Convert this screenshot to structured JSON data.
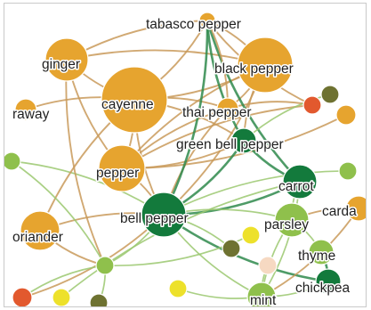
{
  "graph": {
    "nodes": [
      {
        "id": "tabasco-pepper",
        "label": "tabasco pepper",
        "color": "#e6a42f"
      },
      {
        "id": "ginger",
        "label": "ginger",
        "color": "#e6a42f"
      },
      {
        "id": "black-pepper",
        "label": "black pepper",
        "color": "#e6a42f"
      },
      {
        "id": "caraway",
        "label": "raway",
        "color": "#e6a42f"
      },
      {
        "id": "cayenne",
        "label": "cayenne",
        "color": "#e6a42f"
      },
      {
        "id": "thai-pepper",
        "label": "thai pepper",
        "color": "#e6a42f"
      },
      {
        "id": "green-bell-pepper",
        "label": "green bell pepper",
        "color": "#137a3c"
      },
      {
        "id": "pepper",
        "label": "pepper",
        "color": "#e6a42f"
      },
      {
        "id": "carrot",
        "label": "carrot",
        "color": "#137a3c"
      },
      {
        "id": "bell-pepper",
        "label": "bell pepper",
        "color": "#137a3c"
      },
      {
        "id": "parsley",
        "label": "parsley",
        "color": "#8fc04c"
      },
      {
        "id": "cardamom",
        "label": "carda",
        "color": "#e6a42f"
      },
      {
        "id": "coriander",
        "label": "oriander",
        "color": "#e6a42f"
      },
      {
        "id": "thyme",
        "label": "thyme",
        "color": "#8fc04c"
      },
      {
        "id": "chickpea",
        "label": "chickpea",
        "color": "#137a3c"
      },
      {
        "id": "mint",
        "label": "mint",
        "color": "#8fc04c"
      },
      {
        "id": "unlabeled-red-1",
        "label": "",
        "color": "#e2592e"
      },
      {
        "id": "unlabeled-olive-1",
        "label": "",
        "color": "#6e7231"
      },
      {
        "id": "unlabeled-orange-1",
        "label": "",
        "color": "#e6a42f"
      },
      {
        "id": "unlabeled-lightgreen-1",
        "label": "",
        "color": "#8fc04c"
      },
      {
        "id": "unlabeled-green-left",
        "label": "",
        "color": "#8fc04c"
      },
      {
        "id": "unlabeled-olive-2",
        "label": "",
        "color": "#6e7231"
      },
      {
        "id": "unlabeled-yellow-1",
        "label": "",
        "color": "#ede12b"
      },
      {
        "id": "unlabeled-peach",
        "label": "",
        "color": "#f6d9c2"
      },
      {
        "id": "unlabeled-lightgreen-2",
        "label": "",
        "color": "#8fc04c"
      },
      {
        "id": "unlabeled-red-2",
        "label": "",
        "color": "#e2592e"
      },
      {
        "id": "unlabeled-yellow-2",
        "label": "",
        "color": "#ede12b"
      },
      {
        "id": "unlabeled-olive-3",
        "label": "",
        "color": "#6e7231"
      },
      {
        "id": "unlabeled-yellow-3",
        "label": "",
        "color": "#ede12b"
      }
    ],
    "edges": [
      {
        "source": "ginger",
        "target": "cayenne",
        "color": "#c99a5b"
      },
      {
        "source": "ginger",
        "target": "black-pepper",
        "color": "#c99a5b"
      },
      {
        "source": "ginger",
        "target": "pepper",
        "color": "#c99a5b"
      },
      {
        "source": "ginger",
        "target": "tabasco-pepper",
        "color": "#c99a5b"
      },
      {
        "source": "cayenne",
        "target": "black-pepper",
        "color": "#c99a5b"
      },
      {
        "source": "cayenne",
        "target": "pepper",
        "color": "#c99a5b"
      },
      {
        "source": "cayenne",
        "target": "bell-pepper",
        "color": "#c99a5b"
      },
      {
        "source": "cayenne",
        "target": "thai-pepper",
        "color": "#c99a5b"
      },
      {
        "source": "cayenne",
        "target": "tabasco-pepper",
        "color": "#c99a5b"
      },
      {
        "source": "cayenne",
        "target": "green-bell-pepper",
        "color": "#c99a5b"
      },
      {
        "source": "black-pepper",
        "target": "pepper",
        "color": "#c99a5b"
      },
      {
        "source": "black-pepper",
        "target": "bell-pepper",
        "color": "#c99a5b"
      },
      {
        "source": "black-pepper",
        "target": "tabasco-pepper",
        "color": "#c99a5b"
      },
      {
        "source": "black-pepper",
        "target": "thai-pepper",
        "color": "#c99a5b"
      },
      {
        "source": "black-pepper",
        "target": "green-bell-pepper",
        "color": "#c99a5b"
      },
      {
        "source": "pepper",
        "target": "bell-pepper",
        "color": "#c99a5b"
      },
      {
        "source": "pepper",
        "target": "green-bell-pepper",
        "color": "#c99a5b"
      },
      {
        "source": "pepper",
        "target": "thai-pepper",
        "color": "#c99a5b"
      },
      {
        "source": "pepper",
        "target": "unlabeled-orange-1",
        "color": "#c99a5b"
      },
      {
        "source": "pepper",
        "target": "unlabeled-red-1",
        "color": "#c99a5b"
      },
      {
        "source": "thai-pepper",
        "target": "bell-pepper",
        "color": "#c99a5b"
      },
      {
        "source": "thai-pepper",
        "target": "unlabeled-red-1",
        "color": "#c99a5b"
      },
      {
        "source": "tabasco-pepper",
        "target": "green-bell-pepper",
        "color": "#2f8a4c"
      },
      {
        "source": "tabasco-pepper",
        "target": "bell-pepper",
        "color": "#2f8a4c"
      },
      {
        "source": "tabasco-pepper",
        "target": "carrot",
        "color": "#2f8a4c"
      },
      {
        "source": "tabasco-pepper",
        "target": "thai-pepper",
        "color": "#c99a5b"
      },
      {
        "source": "tabasco-pepper",
        "target": "unlabeled-red-1",
        "color": "#c99a5b"
      },
      {
        "source": "green-bell-pepper",
        "target": "bell-pepper",
        "color": "#2f8a4c"
      },
      {
        "source": "green-bell-pepper",
        "target": "carrot",
        "color": "#2f8a4c"
      },
      {
        "source": "green-bell-pepper",
        "target": "unlabeled-olive-1",
        "color": "#9bc870"
      },
      {
        "source": "bell-pepper",
        "target": "carrot",
        "color": "#2f8a4c"
      },
      {
        "source": "bell-pepper",
        "target": "parsley",
        "color": "#9bc870"
      },
      {
        "source": "bell-pepper",
        "target": "mint",
        "color": "#9bc870"
      },
      {
        "source": "bell-pepper",
        "target": "unlabeled-lightgreen-2",
        "color": "#9bc870"
      },
      {
        "source": "bell-pepper",
        "target": "unlabeled-green-left",
        "color": "#9bc870"
      },
      {
        "source": "bell-pepper",
        "target": "unlabeled-olive-2",
        "color": "#9bc870"
      },
      {
        "source": "bell-pepper",
        "target": "coriander",
        "color": "#c99a5b"
      },
      {
        "source": "bell-pepper",
        "target": "unlabeled-red-2",
        "color": "#c99a5b"
      },
      {
        "source": "bell-pepper",
        "target": "chickpea",
        "color": "#2f8a4c"
      },
      {
        "source": "bell-pepper",
        "target": "unlabeled-lightgreen-1",
        "color": "#9bc870"
      },
      {
        "source": "carrot",
        "target": "parsley",
        "color": "#9bc870"
      },
      {
        "source": "carrot",
        "target": "mint",
        "color": "#9bc870"
      },
      {
        "source": "carrot",
        "target": "unlabeled-yellow-2",
        "color": "#9bc870"
      },
      {
        "source": "parsley",
        "target": "thyme",
        "color": "#9bc870"
      },
      {
        "source": "parsley",
        "target": "mint",
        "color": "#9bc870"
      },
      {
        "source": "cardamom",
        "target": "mint",
        "color": "#c99a5b"
      },
      {
        "source": "cardamom",
        "target": "parsley",
        "color": "#c99a5b"
      },
      {
        "source": "coriander",
        "target": "cayenne",
        "color": "#c99a5b"
      },
      {
        "source": "coriander",
        "target": "unlabeled-lightgreen-2",
        "color": "#c99a5b"
      },
      {
        "source": "caraway",
        "target": "cayenne",
        "color": "#c99a5b"
      },
      {
        "source": "ginger",
        "target": "unlabeled-lightgreen-2",
        "color": "#c99a5b"
      },
      {
        "source": "mint",
        "target": "unlabeled-yellow-3",
        "color": "#9bc870"
      },
      {
        "source": "mint",
        "target": "chickpea",
        "color": "#9bc870"
      },
      {
        "source": "mint",
        "target": "unlabeled-peach",
        "color": "#9bc870"
      },
      {
        "source": "chickpea",
        "target": "thyme",
        "color": "#2f8a4c"
      },
      {
        "source": "unlabeled-green-left",
        "target": "unlabeled-lightgreen-2",
        "color": "#9bc870"
      },
      {
        "source": "unlabeled-lightgreen-2",
        "target": "unlabeled-yellow-1",
        "color": "#9bc870"
      },
      {
        "source": "unlabeled-lightgreen-2",
        "target": "unlabeled-olive-3",
        "color": "#9bc870"
      },
      {
        "source": "unlabeled-lightgreen-2",
        "target": "unlabeled-red-2",
        "color": "#9bc870"
      }
    ]
  }
}
